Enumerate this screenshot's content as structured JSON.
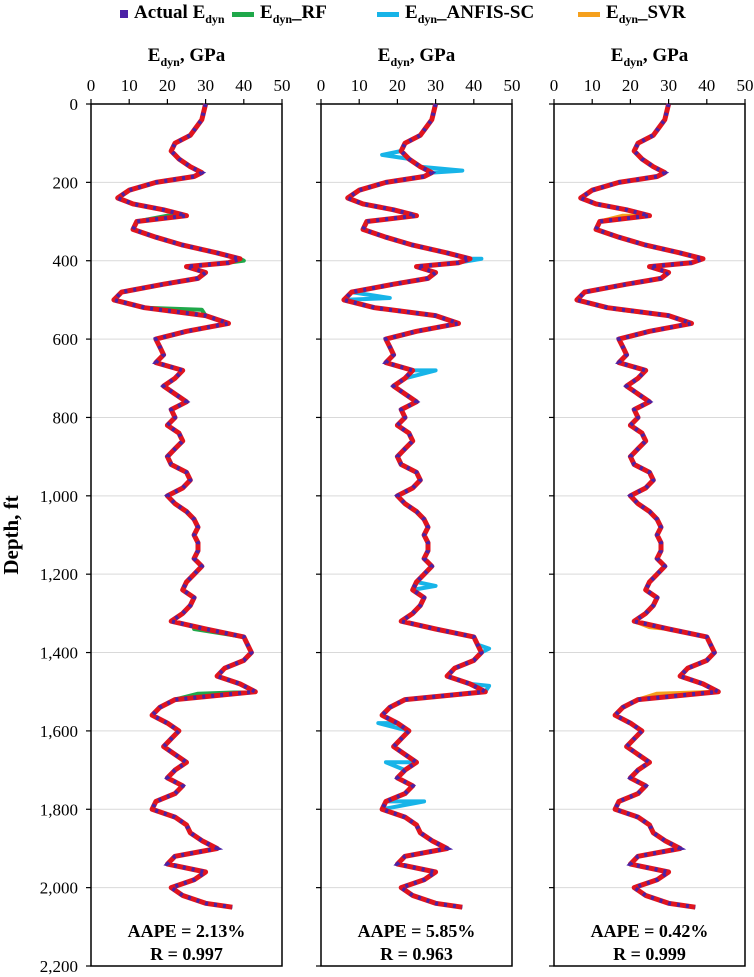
{
  "legend": [
    {
      "base": "Actual E",
      "sub": "dyn",
      "suffix": "",
      "color": "#4b22a6",
      "style": "square"
    },
    {
      "base": "E",
      "sub": "dyn",
      "suffix": "_RF",
      "color": "#1fa84a",
      "style": "line"
    },
    {
      "base": "E",
      "sub": "dyn",
      "suffix": "_ANFIS-SC",
      "color": "#17b4e8",
      "style": "line"
    },
    {
      "base": "E",
      "sub": "dyn",
      "suffix": "_SVR",
      "color": "#f5a01d",
      "style": "line"
    }
  ],
  "chart_data": {
    "type": "line",
    "ylabel": "Depth, ft",
    "ylim": [
      0,
      2200
    ],
    "yticks": [
      0,
      200,
      400,
      600,
      800,
      1000,
      1200,
      1400,
      1600,
      1800,
      2000,
      2200
    ],
    "ytick_labels": [
      "0",
      "200",
      "400",
      "600",
      "800",
      "1,000",
      "1,200",
      "1,400",
      "1,600",
      "1,800",
      "2,000",
      "2,200"
    ],
    "xlim": [
      0,
      50
    ],
    "xticks": [
      "0",
      "10",
      "20",
      "30",
      "40",
      "50"
    ],
    "y_reversed": true,
    "grid": "horizontal",
    "colors": {
      "actual_dash": "#4b22a6",
      "actual_line": "#e0141e",
      "rf": "#1fa84a",
      "anfis": "#17b4e8",
      "svr": "#f5a01d"
    },
    "actual": {
      "name": "Actual E",
      "depth": [
        0,
        40,
        80,
        100,
        120,
        140,
        160,
        175,
        185,
        200,
        220,
        240,
        255,
        270,
        285,
        300,
        320,
        340,
        360,
        380,
        395,
        405,
        415,
        430,
        445,
        460,
        480,
        500,
        520,
        540,
        560,
        580,
        600,
        620,
        640,
        660,
        680,
        700,
        720,
        740,
        760,
        780,
        800,
        820,
        840,
        860,
        880,
        900,
        920,
        940,
        960,
        980,
        1000,
        1020,
        1040,
        1060,
        1080,
        1100,
        1120,
        1140,
        1160,
        1180,
        1200,
        1220,
        1240,
        1260,
        1280,
        1300,
        1320,
        1340,
        1360,
        1380,
        1400,
        1420,
        1440,
        1460,
        1480,
        1500,
        1520,
        1540,
        1560,
        1580,
        1600,
        1620,
        1640,
        1660,
        1680,
        1700,
        1720,
        1740,
        1760,
        1780,
        1800,
        1820,
        1840,
        1860,
        1880,
        1900,
        1920,
        1940,
        1960,
        1980,
        2000,
        2020,
        2040,
        2050
      ],
      "values": [
        30,
        29,
        26,
        22,
        21,
        23,
        26,
        29,
        27,
        17,
        10,
        7,
        11,
        19,
        25,
        12,
        11,
        17,
        24,
        33,
        39,
        36,
        25,
        30,
        28,
        19,
        8,
        6,
        14,
        30,
        36,
        25,
        17,
        18,
        19,
        17,
        24,
        22,
        19,
        22,
        25,
        21,
        22,
        20,
        23,
        24,
        22,
        20,
        21,
        25,
        26,
        24,
        20,
        22,
        25,
        27,
        28,
        27,
        28,
        28,
        27,
        29,
        27,
        25,
        24,
        27,
        26,
        24,
        21,
        30,
        40,
        41,
        42,
        40,
        35,
        33,
        39,
        43,
        22,
        18,
        16,
        20,
        23,
        21,
        19,
        22,
        25,
        22,
        20,
        24,
        22,
        17,
        16,
        22,
        25,
        26,
        29,
        33,
        22,
        20,
        30,
        27,
        21,
        24,
        30,
        37,
        35
      ]
    },
    "panels": [
      {
        "title_base": "E",
        "title_sub": "dyn",
        "title_suffix": ", GPa",
        "model": "rf",
        "aape": "AAPE = 2.13%",
        "r": "R = 0.997",
        "deviations": [
          {
            "depth": 285,
            "value": 20
          },
          {
            "depth": 400,
            "value": 40
          },
          {
            "depth": 525,
            "value": 29
          },
          {
            "depth": 1340,
            "value": 27
          },
          {
            "depth": 1505,
            "value": 28
          }
        ]
      },
      {
        "title_base": "E",
        "title_sub": "dyn",
        "title_suffix": ", GPa",
        "model": "anfis",
        "aape": "AAPE = 5.85%",
        "r": "R = 0.963",
        "deviations": [
          {
            "depth": 130,
            "value": 16
          },
          {
            "depth": 170,
            "value": 37
          },
          {
            "depth": 395,
            "value": 42
          },
          {
            "depth": 495,
            "value": 18
          },
          {
            "depth": 680,
            "value": 30
          },
          {
            "depth": 1230,
            "value": 30
          },
          {
            "depth": 1390,
            "value": 44
          },
          {
            "depth": 1485,
            "value": 44
          },
          {
            "depth": 1580,
            "value": 15
          },
          {
            "depth": 1680,
            "value": 17
          },
          {
            "depth": 1780,
            "value": 27
          }
        ]
      },
      {
        "title_base": "E",
        "title_sub": "dyn",
        "title_suffix": ", GPa",
        "model": "svr",
        "aape": "AAPE = 0.42%",
        "r": "R = 0.999",
        "deviations": [
          {
            "depth": 285,
            "value": 18
          },
          {
            "depth": 525,
            "value": 17
          },
          {
            "depth": 1335,
            "value": 25
          },
          {
            "depth": 1505,
            "value": 27
          }
        ]
      }
    ]
  }
}
